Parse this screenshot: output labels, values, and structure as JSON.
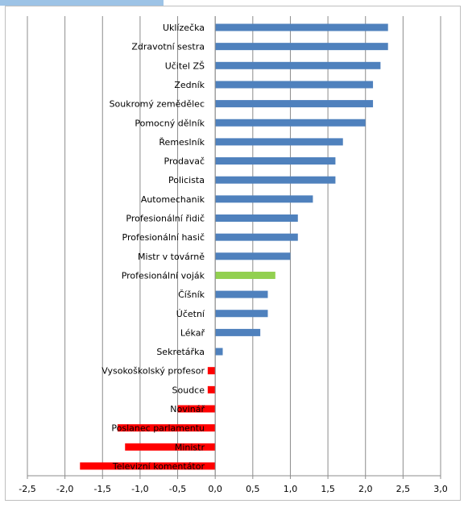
{
  "chart_data": {
    "type": "bar",
    "orientation": "horizontal",
    "title": "",
    "xlabel": "",
    "ylabel": "",
    "xlim": [
      -2.5,
      3.0
    ],
    "x_ticks": [
      "-2,5",
      "-2,0",
      "-1,5",
      "-1,0",
      "-0,5",
      "0,0",
      "0,5",
      "1,0",
      "1,5",
      "2,0",
      "2,5",
      "3,0"
    ],
    "grid": "vertical",
    "legend": "none",
    "colors": {
      "positive": "#4f81bd",
      "highlight": "#92d050",
      "negative": "#ff0000",
      "grid": "#8c8c8c"
    },
    "categories": [
      "Uklízečka",
      "Zdravotní sestra",
      "Učitel ZŠ",
      "Zedník",
      "Soukromý zemědělec",
      "Pomocný dělník",
      "Řemeslník",
      "Prodavač",
      "Policista",
      "Automechanik",
      "Profesionální řidič",
      "Profesionální hasič",
      "Mistr v továrně",
      "Profesionální voják",
      "Číšník",
      "Účetní",
      "Lékař",
      "Sekretářka",
      "Vysokoškolský profesor",
      "Soudce",
      "Novinář",
      "Poslanec parlamentu",
      "Ministr",
      "Televizní komentátor"
    ],
    "values": [
      2.3,
      2.3,
      2.2,
      2.1,
      2.1,
      2.0,
      1.7,
      1.6,
      1.6,
      1.3,
      1.1,
      1.1,
      1.0,
      0.8,
      0.7,
      0.7,
      0.6,
      0.1,
      -0.1,
      -0.1,
      -0.5,
      -1.3,
      -1.2,
      -1.8
    ],
    "highlight_index": 13
  }
}
